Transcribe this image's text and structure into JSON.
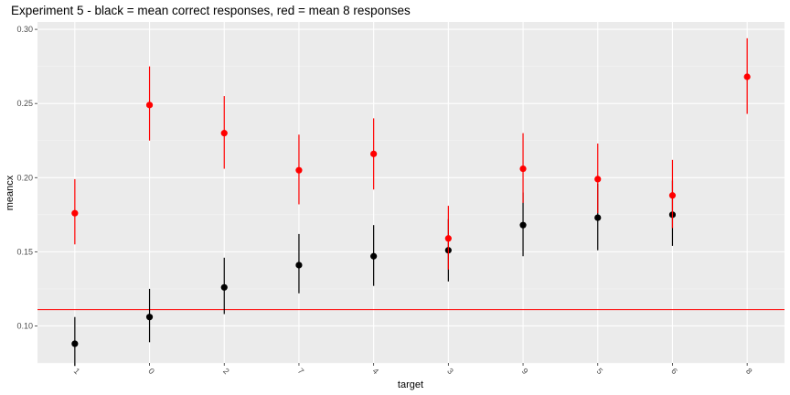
{
  "chart_data": {
    "type": "scatter",
    "title": "Experiment 5 - black = mean correct responses, red = mean 8 responses",
    "xlabel": "target",
    "ylabel": "meancx",
    "categories": [
      "1",
      "0",
      "2",
      "7",
      "4",
      "3",
      "9",
      "5",
      "6",
      "8"
    ],
    "ylim": [
      0.075,
      0.305
    ],
    "yticks": [
      "0.10",
      "0.15",
      "0.20",
      "0.25",
      "0.30"
    ],
    "reference_line": {
      "y": 0.111,
      "color": "#ff0000"
    },
    "background": "#ebebeb",
    "grid": true,
    "series": [
      {
        "color": "#000000",
        "points": [
          {
            "x": "1",
            "y": 0.088,
            "low": 0.073,
            "high": 0.106
          },
          {
            "x": "0",
            "y": 0.106,
            "low": 0.089,
            "high": 0.125
          },
          {
            "x": "2",
            "y": 0.126,
            "low": 0.108,
            "high": 0.146
          },
          {
            "x": "7",
            "y": 0.141,
            "low": 0.122,
            "high": 0.162
          },
          {
            "x": "4",
            "y": 0.147,
            "low": 0.127,
            "high": 0.168
          },
          {
            "x": "3",
            "y": 0.151,
            "low": 0.13,
            "high": 0.172
          },
          {
            "x": "9",
            "y": 0.168,
            "low": 0.147,
            "high": 0.19
          },
          {
            "x": "5",
            "y": 0.173,
            "low": 0.151,
            "high": 0.196
          },
          {
            "x": "6",
            "y": 0.175,
            "low": 0.154,
            "high": 0.198
          },
          {
            "x": "8",
            "y": null,
            "low": null,
            "high": null
          }
        ]
      },
      {
        "color": "#ff0000",
        "points": [
          {
            "x": "1",
            "y": 0.176,
            "low": 0.155,
            "high": 0.199
          },
          {
            "x": "0",
            "y": 0.249,
            "low": 0.225,
            "high": 0.275
          },
          {
            "x": "2",
            "y": 0.23,
            "low": 0.206,
            "high": 0.255
          },
          {
            "x": "7",
            "y": 0.205,
            "low": 0.182,
            "high": 0.229
          },
          {
            "x": "4",
            "y": 0.216,
            "low": 0.192,
            "high": 0.24
          },
          {
            "x": "3",
            "y": 0.159,
            "low": 0.138,
            "high": 0.181
          },
          {
            "x": "9",
            "y": 0.206,
            "low": 0.183,
            "high": 0.23
          },
          {
            "x": "5",
            "y": 0.199,
            "low": 0.176,
            "high": 0.223
          },
          {
            "x": "6",
            "y": 0.188,
            "low": 0.166,
            "high": 0.212
          },
          {
            "x": "8",
            "y": 0.268,
            "low": 0.243,
            "high": 0.294
          }
        ]
      }
    ]
  }
}
